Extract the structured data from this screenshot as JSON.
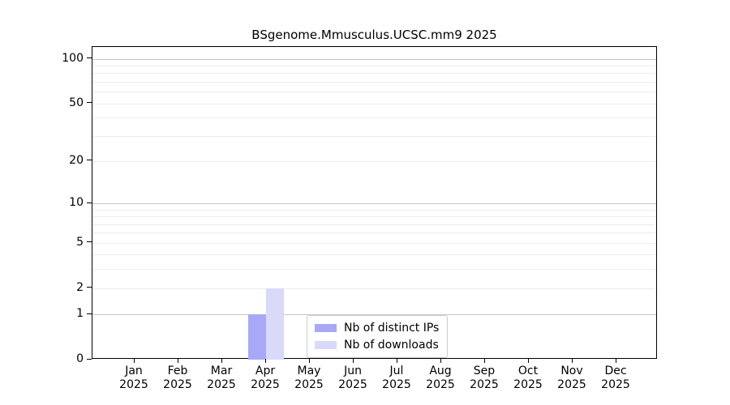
{
  "chart_data": {
    "type": "bar",
    "title": "BSgenome.Mmusculus.UCSC.mm9 2025",
    "categories": [
      "Jan",
      "Feb",
      "Mar",
      "Apr",
      "May",
      "Jun",
      "Jul",
      "Aug",
      "Sep",
      "Oct",
      "Nov",
      "Dec"
    ],
    "category_year": "2025",
    "series": [
      {
        "name": "Nb of distinct IPs",
        "color": "#a8a8f6",
        "values": [
          0,
          0,
          0,
          1,
          0,
          0,
          0,
          0,
          0,
          0,
          0,
          0
        ]
      },
      {
        "name": "Nb of downloads",
        "color": "#d9d9fa",
        "values": [
          0,
          0,
          0,
          2,
          0,
          0,
          0,
          0,
          0,
          0,
          0,
          0
        ]
      }
    ],
    "xlabel": "",
    "ylabel": "",
    "yscale": "log1p",
    "ylim": [
      0,
      120
    ],
    "yticks": [
      0,
      1,
      2,
      5,
      10,
      20,
      50,
      100
    ],
    "major_gridlines": [
      1,
      10,
      100
    ],
    "minor_gridlines": [
      2,
      3,
      4,
      5,
      6,
      7,
      8,
      9,
      20,
      30,
      40,
      50,
      60,
      70,
      80,
      90
    ],
    "grid": true,
    "legend_position": "lower-center-inside",
    "colors": {
      "major_grid": "#c6c6c6",
      "minor_grid": "#ececec",
      "axis": "#000000",
      "text": "#000000",
      "background": "#ffffff"
    }
  }
}
